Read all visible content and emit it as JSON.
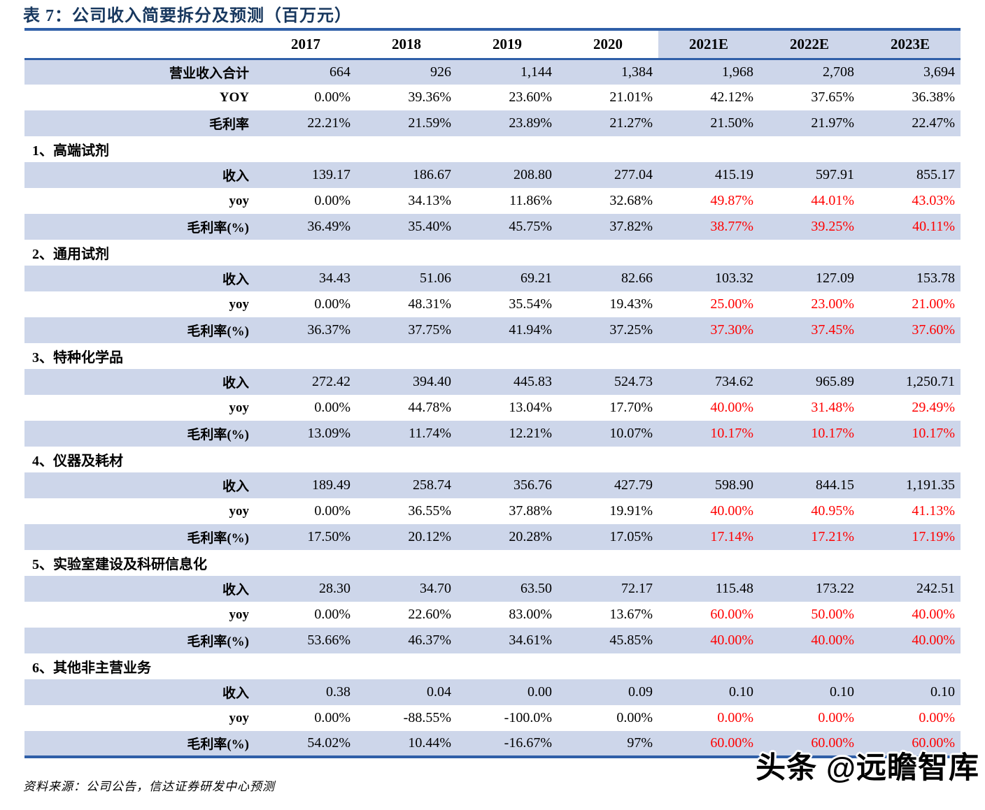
{
  "title": "表 7：公司收入简要拆分及预测（百万元）",
  "colors": {
    "title_navy": "#17375E",
    "rule_blue": "#2F5FA8",
    "row_band": "#CDD6EA",
    "forecast_red": "#FF0000"
  },
  "chart_data": {
    "type": "table",
    "title": "公司收入简要拆分及预测（百万元）",
    "columns": [
      "2017",
      "2018",
      "2019",
      "2020",
      "2021E",
      "2022E",
      "2023E"
    ],
    "forecast_start_index": 4,
    "summary_rows": [
      {
        "label": "营业收入合计",
        "values": [
          "664",
          "926",
          "1,144",
          "1,384",
          "1,968",
          "2,708",
          "3,694"
        ],
        "forecast_red": false
      },
      {
        "label": "YOY",
        "values": [
          "0.00%",
          "39.36%",
          "23.60%",
          "21.01%",
          "42.12%",
          "37.65%",
          "36.38%"
        ],
        "forecast_red": false
      },
      {
        "label": "毛利率",
        "values": [
          "22.21%",
          "21.59%",
          "23.89%",
          "21.27%",
          "21.50%",
          "21.97%",
          "22.47%"
        ],
        "forecast_red": false
      }
    ],
    "sections": [
      {
        "header": "1、高端试剂",
        "rows": [
          {
            "label": "收入",
            "values": [
              "139.17",
              "186.67",
              "208.80",
              "277.04",
              "415.19",
              "597.91",
              "855.17"
            ],
            "forecast_red": false
          },
          {
            "label": "yoy",
            "values": [
              "0.00%",
              "34.13%",
              "11.86%",
              "32.68%",
              "49.87%",
              "44.01%",
              "43.03%"
            ],
            "forecast_red": true
          },
          {
            "label": "毛利率(%)",
            "values": [
              "36.49%",
              "35.40%",
              "45.75%",
              "37.82%",
              "38.77%",
              "39.25%",
              "40.11%"
            ],
            "forecast_red": true
          }
        ]
      },
      {
        "header": "2、通用试剂",
        "rows": [
          {
            "label": "收入",
            "values": [
              "34.43",
              "51.06",
              "69.21",
              "82.66",
              "103.32",
              "127.09",
              "153.78"
            ],
            "forecast_red": false
          },
          {
            "label": "yoy",
            "values": [
              "0.00%",
              "48.31%",
              "35.54%",
              "19.43%",
              "25.00%",
              "23.00%",
              "21.00%"
            ],
            "forecast_red": true
          },
          {
            "label": "毛利率(%)",
            "values": [
              "36.37%",
              "37.75%",
              "41.94%",
              "37.25%",
              "37.30%",
              "37.45%",
              "37.60%"
            ],
            "forecast_red": true
          }
        ]
      },
      {
        "header": "3、特种化学品",
        "rows": [
          {
            "label": "收入",
            "values": [
              "272.42",
              "394.40",
              "445.83",
              "524.73",
              "734.62",
              "965.89",
              "1,250.71"
            ],
            "forecast_red": false
          },
          {
            "label": "yoy",
            "values": [
              "0.00%",
              "44.78%",
              "13.04%",
              "17.70%",
              "40.00%",
              "31.48%",
              "29.49%"
            ],
            "forecast_red": true
          },
          {
            "label": "毛利率(%)",
            "values": [
              "13.09%",
              "11.74%",
              "12.21%",
              "10.07%",
              "10.17%",
              "10.17%",
              "10.17%"
            ],
            "forecast_red": true
          }
        ]
      },
      {
        "header": "4、仪器及耗材",
        "rows": [
          {
            "label": "收入",
            "values": [
              "189.49",
              "258.74",
              "356.76",
              "427.79",
              "598.90",
              "844.15",
              "1,191.35"
            ],
            "forecast_red": false
          },
          {
            "label": "yoy",
            "values": [
              "0.00%",
              "36.55%",
              "37.88%",
              "19.91%",
              "40.00%",
              "40.95%",
              "41.13%"
            ],
            "forecast_red": true
          },
          {
            "label": "毛利率(%)",
            "values": [
              "17.50%",
              "20.12%",
              "20.28%",
              "17.05%",
              "17.14%",
              "17.21%",
              "17.19%"
            ],
            "forecast_red": true
          }
        ]
      },
      {
        "header": "5、实验室建设及科研信息化",
        "rows": [
          {
            "label": "收入",
            "values": [
              "28.30",
              "34.70",
              "63.50",
              "72.17",
              "115.48",
              "173.22",
              "242.51"
            ],
            "forecast_red": false
          },
          {
            "label": "yoy",
            "values": [
              "0.00%",
              "22.60%",
              "83.00%",
              "13.67%",
              "60.00%",
              "50.00%",
              "40.00%"
            ],
            "forecast_red": true
          },
          {
            "label": "毛利率(%)",
            "values": [
              "53.66%",
              "46.37%",
              "34.61%",
              "45.85%",
              "40.00%",
              "40.00%",
              "40.00%"
            ],
            "forecast_red": true
          }
        ]
      },
      {
        "header": "6、其他非主营业务",
        "rows": [
          {
            "label": "收入",
            "values": [
              "0.38",
              "0.04",
              "0.00",
              "0.09",
              "0.10",
              "0.10",
              "0.10"
            ],
            "forecast_red": false
          },
          {
            "label": "yoy",
            "values": [
              "0.00%",
              "-88.55%",
              "-100.0%",
              "0.00%",
              "0.00%",
              "0.00%",
              "0.00%"
            ],
            "forecast_red": true
          },
          {
            "label": "毛利率(%)",
            "values": [
              "54.02%",
              "10.44%",
              "-16.67%",
              "97%",
              "60.00%",
              "60.00%",
              "60.00%"
            ],
            "forecast_red": true
          }
        ]
      }
    ]
  },
  "footer": {
    "source": "资料来源：公司公告，信达证券研发中心预测"
  },
  "watermark": "头条 @远瞻智库"
}
